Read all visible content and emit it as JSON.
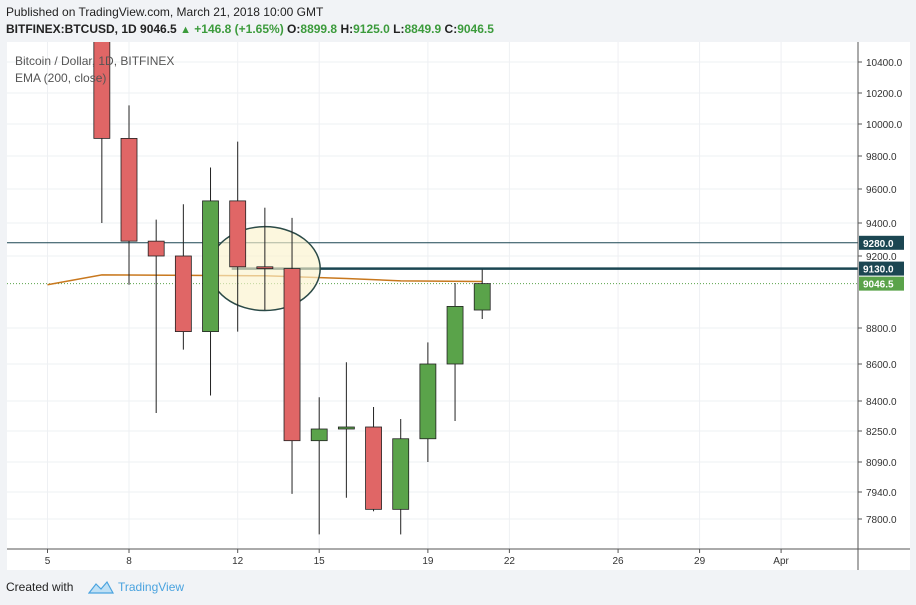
{
  "header": {
    "published": "Published on TradingView.com, March 21, 2018 10:00 GMT",
    "symbol": "BITFINEX:BTCUSD, 1D",
    "last": "9046.5",
    "change": "+146.8 (+1.65%)",
    "o_label": "O:",
    "o": "8899.8",
    "h_label": "H:",
    "h": "9125.0",
    "l_label": "L:",
    "l": "8849.9",
    "c_label": "C:",
    "c": "9046.5"
  },
  "legend": {
    "title": "Bitcoin / Dollar, 1D, BITFINEX",
    "indicator": "EMA (200, close)"
  },
  "footer": {
    "created": "Created with",
    "brand": "TradingView"
  },
  "colors": {
    "up": "#5aa34a",
    "down": "#e06666",
    "ema": "#c8781e",
    "line": "#1b4652",
    "circle_fill": "#fbf2cc",
    "last_price_tag": "#5aa34a"
  },
  "chart_data": {
    "type": "candlestick",
    "title": "Bitcoin / Dollar, 1D, BITFINEX",
    "y_ticks": [
      7800,
      7940,
      8090,
      8250,
      8400,
      8600,
      8800,
      9200,
      9400,
      9600,
      9800,
      10000,
      10200,
      10400
    ],
    "y_tick_labels": [
      "7800.0",
      "7940.0",
      "8090.0",
      "8250.0",
      "8400.0",
      "8600.0",
      "8800.0",
      "9200.0",
      "9400.0",
      "9600.0",
      "9800.0",
      "10000.0",
      "10200.0",
      "10400.0"
    ],
    "x_ticks": [
      5,
      8,
      12,
      15,
      19,
      22,
      26,
      29,
      32
    ],
    "x_tick_labels": [
      "5",
      "8",
      "12",
      "15",
      "19",
      "22",
      "26",
      "29",
      "Apr"
    ],
    "candles": [
      {
        "d": 7,
        "o": 10600,
        "h": 10700,
        "l": 9400,
        "c": 9910
      },
      {
        "d": 8,
        "o": 9910,
        "h": 10120,
        "l": 9040,
        "c": 9290
      },
      {
        "d": 9,
        "o": 9290,
        "h": 9420,
        "l": 8340,
        "c": 9200
      },
      {
        "d": 10,
        "o": 9200,
        "h": 9510,
        "l": 8680,
        "c": 8780
      },
      {
        "d": 11,
        "o": 8780,
        "h": 9730,
        "l": 8430,
        "c": 9530
      },
      {
        "d": 12,
        "o": 9530,
        "h": 9890,
        "l": 8780,
        "c": 9140
      },
      {
        "d": 13,
        "o": 9140,
        "h": 9490,
        "l": 8900,
        "c": 9130
      },
      {
        "d": 14,
        "o": 9130,
        "h": 9430,
        "l": 7930,
        "c": 8200
      },
      {
        "d": 15,
        "o": 8200,
        "h": 8420,
        "l": 7720,
        "c": 8260
      },
      {
        "d": 16,
        "o": 8260,
        "h": 8610,
        "l": 7910,
        "c": 8270
      },
      {
        "d": 17,
        "o": 8270,
        "h": 8370,
        "l": 7840,
        "c": 7850
      },
      {
        "d": 18,
        "o": 7850,
        "h": 8310,
        "l": 7720,
        "c": 8210
      },
      {
        "d": 19,
        "o": 8210,
        "h": 8720,
        "l": 8090,
        "c": 8600
      },
      {
        "d": 20,
        "o": 8600,
        "h": 9050,
        "l": 8300,
        "c": 8920
      },
      {
        "d": 21,
        "o": 8899.8,
        "h": 9125.0,
        "l": 8849.9,
        "c": 9046.5
      }
    ],
    "ema": [
      {
        "d": 5,
        "v": 9040
      },
      {
        "d": 7,
        "v": 9095
      },
      {
        "d": 13,
        "v": 9090
      },
      {
        "d": 16,
        "v": 9075
      },
      {
        "d": 18,
        "v": 9062
      },
      {
        "d": 21,
        "v": 9058
      }
    ],
    "horizontal_lines": [
      {
        "value": 9280,
        "label": "9280.0",
        "style": "thin"
      },
      {
        "value": 9130,
        "label": "9130.0",
        "style": "thick",
        "from_day": 12
      }
    ],
    "last_price": {
      "value": 9046.5,
      "label": "9046.5"
    },
    "annotation_ellipse": {
      "center_day": 13,
      "center_value": 9130,
      "radius_days": 1.3,
      "radius_value": 240
    }
  }
}
